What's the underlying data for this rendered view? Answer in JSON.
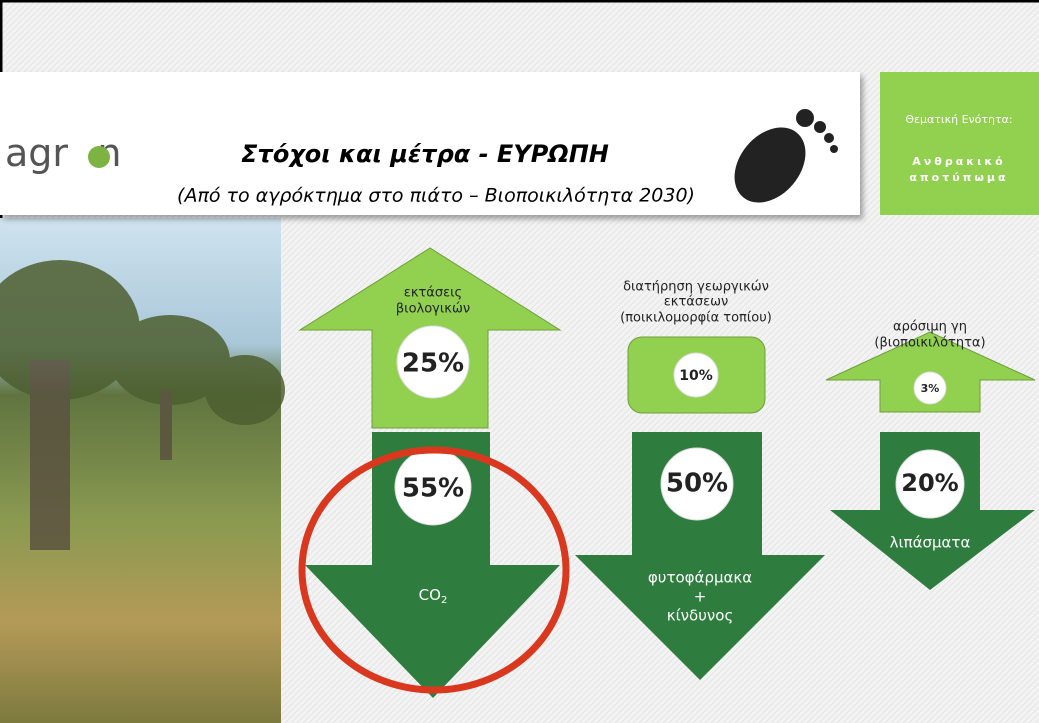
{
  "header": {
    "logo_start": "agr",
    "logo_end": "n",
    "title": "Στόχοι και μέτρα  - ΕΥΡΩΠΗ",
    "subtitle": "(Από το αγρόκτημα στο πιάτο – Βιοποικιλότητα 2030)"
  },
  "theme_box": {
    "label": "Θεματική Ενότητα:",
    "topic_line1": "Ανθρακικό",
    "topic_line2": "αποτύπωμα"
  },
  "increase_targets": [
    {
      "label_lines": [
        "εκτάσεις",
        "βιολογικών"
      ],
      "value": "25%"
    },
    {
      "label_lines": [
        "διατήρηση γεωργικών",
        "εκτάσεων",
        "(ποικιλομορφία τοπίου)"
      ],
      "value": "10%"
    },
    {
      "label_lines": [
        "αρόσιμη γη",
        "(βιοποικιλότητα)"
      ],
      "value": "3%"
    }
  ],
  "reduction_targets": [
    {
      "value": "55%",
      "label": "CO",
      "label_sub": "2"
    },
    {
      "value": "50%",
      "label_lines": [
        "φυτοφάρμακα",
        "+",
        "κίνδυνος"
      ]
    },
    {
      "value": "20%",
      "label_lines": [
        "λιπάσματα"
      ]
    }
  ]
}
